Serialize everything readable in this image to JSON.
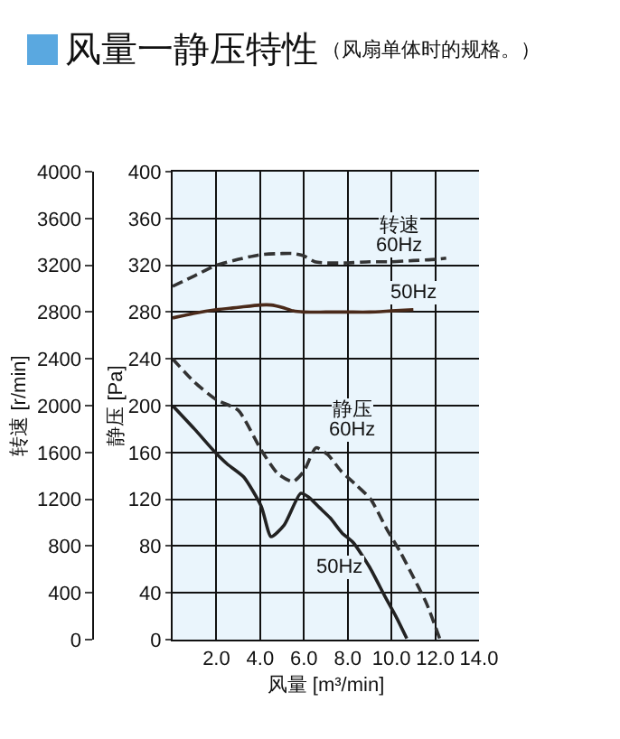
{
  "chart_data": {
    "type": "line",
    "title": "风量一静压特性",
    "subtitle": "（风扇单体时的规格。）",
    "xlabel": "风量 [m³/min]",
    "ylabel": "静压 [Pa]",
    "y2label": "转速 [r/min]",
    "xlim": [
      0,
      14
    ],
    "xticks": [
      {
        "value": 2,
        "label": "2.0"
      },
      {
        "value": 4,
        "label": "4.0"
      },
      {
        "value": 6,
        "label": "6.0"
      },
      {
        "value": 8,
        "label": "8.0"
      },
      {
        "value": 10,
        "label": "10.0"
      },
      {
        "value": 12,
        "label": "12.0"
      },
      {
        "value": 14,
        "label": "14.0"
      }
    ],
    "ylim": [
      0,
      400
    ],
    "yticks": [
      0,
      40,
      80,
      120,
      160,
      200,
      240,
      280,
      320,
      360,
      400
    ],
    "y2lim": [
      0,
      4000
    ],
    "y2ticks": [
      0,
      400,
      800,
      1200,
      1600,
      2000,
      2400,
      2800,
      3200,
      3600,
      4000
    ],
    "grid": true,
    "series": [
      {
        "color": "#333333",
        "line_style": "dashed",
        "axis": "y2",
        "x": [
          0,
          1,
          2,
          3,
          4,
          5,
          5.5,
          6,
          6.5,
          7,
          8,
          9,
          10,
          11,
          12,
          12.5
        ],
        "values": [
          3020,
          3110,
          3200,
          3250,
          3290,
          3300,
          3300,
          3280,
          3230,
          3220,
          3220,
          3230,
          3230,
          3240,
          3250,
          3260
        ]
      },
      {
        "color": "#4a2a1a",
        "line_style": "solid",
        "axis": "y2",
        "x": [
          0,
          1,
          2,
          3,
          4,
          4.5,
          5,
          5.5,
          6,
          7,
          8,
          9,
          10,
          11
        ],
        "values": [
          2750,
          2790,
          2820,
          2840,
          2860,
          2860,
          2840,
          2810,
          2800,
          2800,
          2800,
          2800,
          2810,
          2820
        ]
      },
      {
        "color": "#333333",
        "line_style": "dashed",
        "x": [
          0,
          1,
          2,
          3,
          4.05,
          4.8,
          5.5,
          6,
          6.55,
          7.1,
          7.7,
          8.4,
          9.05,
          9.8,
          10.4,
          10.9,
          11.6,
          12.2
        ],
        "values": [
          240,
          220,
          205,
          196,
          162,
          142,
          135,
          144,
          164,
          158,
          144,
          132,
          120,
          94,
          75,
          57,
          31,
          1
        ]
      },
      {
        "color": "#222222",
        "line_style": "solid",
        "x": [
          0,
          1,
          1.95,
          2.5,
          3.25,
          4.05,
          4.5,
          5.1,
          5.85,
          6.2,
          6.7,
          7.2,
          7.75,
          8.25,
          9,
          9.7,
          10.2,
          10.7
        ],
        "values": [
          200,
          180,
          160,
          150,
          139,
          114,
          88,
          98,
          125,
          122,
          113,
          104,
          91,
          83,
          62,
          37,
          20,
          1
        ]
      }
    ],
    "annotations": [
      {
        "text": "转速",
        "x": 10.4,
        "y": 354
      },
      {
        "text": "60Hz",
        "x": 10.4,
        "y": 337
      },
      {
        "text": "50Hz",
        "x": 11,
        "y": 297
      },
      {
        "text": "静压",
        "x": 8.2,
        "y": 196
      },
      {
        "text": "60Hz",
        "x": 8.2,
        "y": 179
      },
      {
        "text": "50Hz",
        "x": 7.6,
        "y": 62
      }
    ]
  }
}
